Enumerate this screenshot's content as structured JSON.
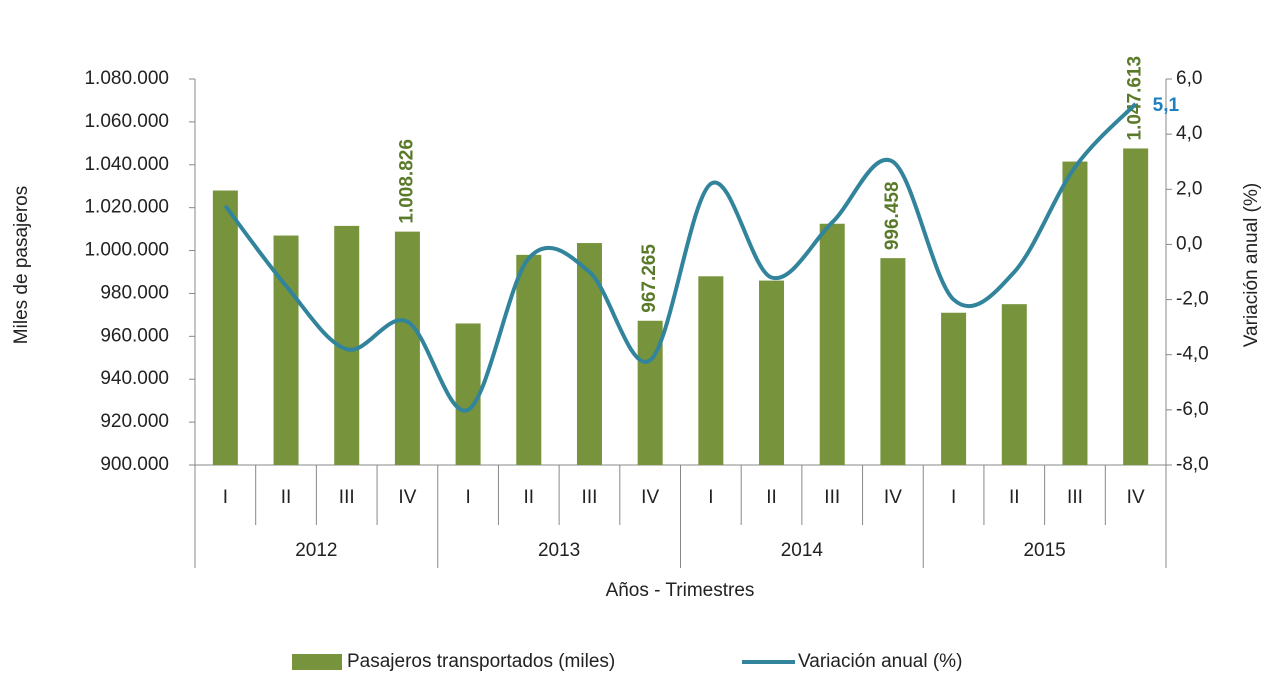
{
  "chart_data": {
    "type": "bar_line",
    "categories": [
      "I",
      "II",
      "III",
      "IV",
      "I",
      "II",
      "III",
      "IV",
      "I",
      "II",
      "III",
      "IV",
      "I",
      "II",
      "III",
      "IV"
    ],
    "years": [
      "2012",
      "2013",
      "2014",
      "2015"
    ],
    "x_label": "Años - Trimestres",
    "y_label": "Miles de pasajeros",
    "y2_label": "Variación anual (%)",
    "ylim": [
      900000,
      1080000
    ],
    "yticks": [
      {
        "value": 900000,
        "label": "900.000"
      },
      {
        "value": 920000,
        "label": "920.000"
      },
      {
        "value": 940000,
        "label": "940.000"
      },
      {
        "value": 960000,
        "label": "960.000"
      },
      {
        "value": 980000,
        "label": "980.000"
      },
      {
        "value": 1000000,
        "label": "1.000.000"
      },
      {
        "value": 1020000,
        "label": "1.020.000"
      },
      {
        "value": 1040000,
        "label": "1.040.000"
      },
      {
        "value": 1060000,
        "label": "1.060.000"
      },
      {
        "value": 1080000,
        "label": "1.080.000"
      }
    ],
    "y2lim": [
      -8,
      6
    ],
    "y2ticks": [
      {
        "value": -8,
        "label": "-8,0"
      },
      {
        "value": -6,
        "label": "-6,0"
      },
      {
        "value": -4,
        "label": "-4,0"
      },
      {
        "value": -2,
        "label": "-2,0"
      },
      {
        "value": 0,
        "label": "0,0"
      },
      {
        "value": 2,
        "label": "2,0"
      },
      {
        "value": 4,
        "label": "4,0"
      },
      {
        "value": 6,
        "label": "6,0"
      }
    ],
    "series": [
      {
        "name": "Pasajeros transportados (miles)",
        "color": "#77933c",
        "kind": "bar",
        "values": [
          1028000,
          1007000,
          1011500,
          1008826,
          966000,
          998000,
          1003500,
          967265,
          988000,
          986000,
          1012500,
          996458,
          971000,
          975000,
          1041500,
          1047613
        ],
        "value_labels": [
          null,
          null,
          null,
          "1.008.826",
          null,
          null,
          null,
          "967.265",
          null,
          null,
          null,
          "996.458",
          null,
          null,
          null,
          "1.047.613"
        ],
        "label_color": "#5a7a2a"
      },
      {
        "name": "Variación anual (%)",
        "color": "#31849b",
        "kind": "line",
        "axis": "y2",
        "values": [
          1.4,
          -1.5,
          -3.8,
          -2.8,
          -6.0,
          -0.5,
          -1.0,
          -4.2,
          2.2,
          -1.2,
          0.8,
          3.0,
          -2.0,
          -1.0,
          2.8,
          5.1
        ],
        "value_labels": [
          null,
          null,
          null,
          null,
          null,
          null,
          null,
          null,
          null,
          null,
          null,
          null,
          null,
          null,
          null,
          "5,1"
        ],
        "label_color": "#1f7fc0"
      }
    ]
  }
}
